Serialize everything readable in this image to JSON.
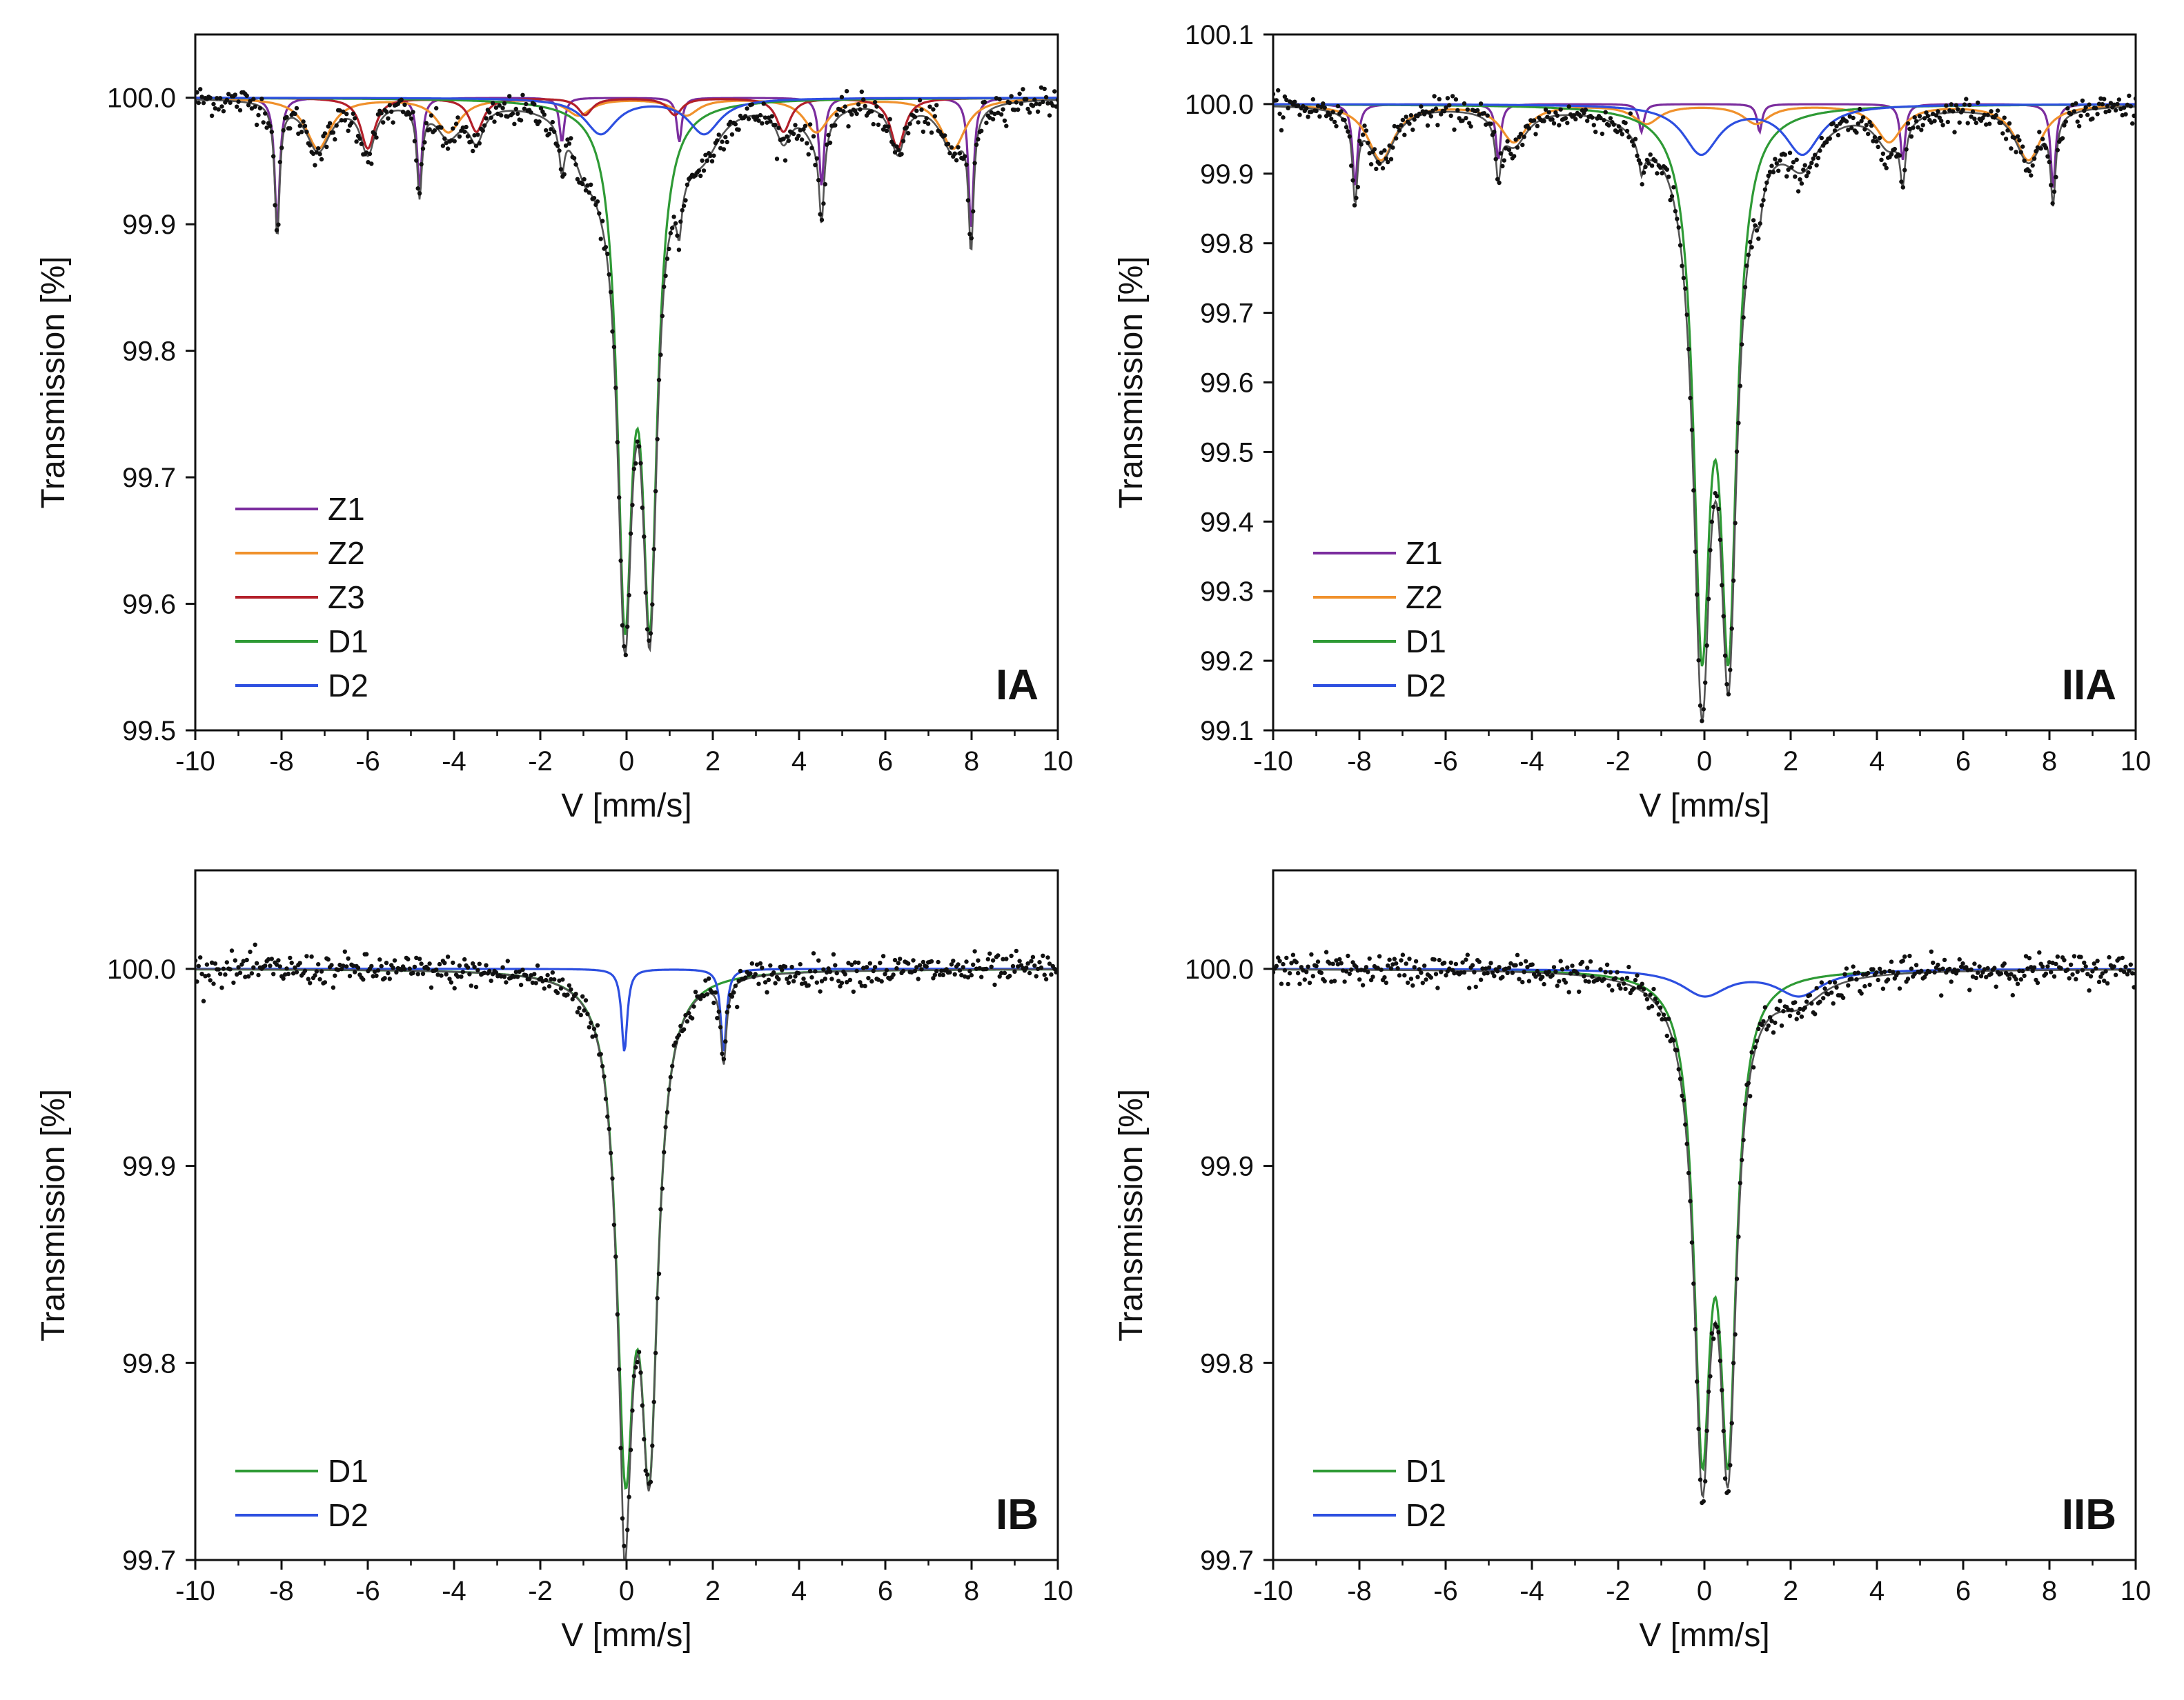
{
  "figure": {
    "description_free": true,
    "panels_count": 4
  },
  "chart_data": [
    {
      "id": "IA",
      "type": "line",
      "panel_label": "IA",
      "xlabel": "V [mm/s]",
      "ylabel": "Transmission [%]",
      "xlim": [
        -10,
        10
      ],
      "ylim": [
        99.5,
        100.05
      ],
      "xticks": [
        -10,
        -8,
        -6,
        -4,
        -2,
        0,
        2,
        4,
        6,
        8,
        10
      ],
      "yticks": [
        99.5,
        99.6,
        99.7,
        99.8,
        99.9,
        100.0
      ],
      "ytick_labels": [
        "99.5",
        "99.6",
        "99.7",
        "99.8",
        "99.9",
        "100.0"
      ],
      "legend_position": "bottom-left",
      "series": [
        {
          "name": "Z1",
          "color": "#7b2d9e",
          "kind": "sextet",
          "center": 0.15,
          "split": 16.5,
          "width": 0.14,
          "depth": 0.105,
          "ratios": [
            3,
            2,
            1,
            1,
            2,
            3
          ]
        },
        {
          "name": "Z2",
          "color": "#f0912c",
          "kind": "sextet",
          "center": 0.4,
          "split": 15.1,
          "width": 0.7,
          "depth": 0.04,
          "ratios": [
            3,
            2,
            1,
            1,
            2,
            3
          ]
        },
        {
          "name": "Z3",
          "color": "#b3202a",
          "kind": "sextet",
          "center": 0.3,
          "split": 12.6,
          "width": 0.4,
          "depth": 0.04,
          "ratios": [
            3,
            2,
            1,
            1,
            2,
            3
          ]
        },
        {
          "name": "D1",
          "color": "#2e9a35",
          "kind": "doublet",
          "center": 0.25,
          "split": 0.58,
          "width": 0.42,
          "depth": 0.38
        },
        {
          "name": "D2",
          "color": "#2d4fe0",
          "kind": "doublet",
          "center": 0.6,
          "split": 2.4,
          "width": 0.9,
          "depth": 0.028
        }
      ],
      "envelope": {
        "name": "fit",
        "color": "#555555"
      },
      "data_points": {
        "color": "#111111",
        "noise": 0.006
      }
    },
    {
      "id": "IIA",
      "type": "line",
      "panel_label": "IIA",
      "xlabel": "V [mm/s]",
      "ylabel": "Transmission [%]",
      "xlim": [
        -10,
        10
      ],
      "ylim": [
        99.1,
        100.1
      ],
      "xticks": [
        -10,
        -8,
        -6,
        -4,
        -2,
        0,
        2,
        4,
        6,
        8,
        10
      ],
      "yticks": [
        99.1,
        99.2,
        99.3,
        99.4,
        99.5,
        99.6,
        99.7,
        99.8,
        99.9,
        100.0,
        100.1
      ],
      "ytick_labels": [
        "99.1",
        "99.2",
        "99.3",
        "99.4",
        "99.5",
        "99.6",
        "99.7",
        "99.8",
        "99.9",
        "100.0",
        "100.1"
      ],
      "legend_position": "bottom-left",
      "series": [
        {
          "name": "Z1",
          "color": "#7b2d9e",
          "kind": "sextet",
          "center": 0.2,
          "split": 16.6,
          "width": 0.14,
          "depth": 0.12,
          "ratios": [
            3,
            2,
            1,
            1,
            2,
            3
          ]
        },
        {
          "name": "Z2",
          "color": "#f0912c",
          "kind": "sextet",
          "center": 0.2,
          "split": 15.4,
          "width": 0.75,
          "depth": 0.08,
          "ratios": [
            3,
            2,
            1,
            1,
            2,
            3
          ]
        },
        {
          "name": "D1",
          "color": "#2e9a35",
          "kind": "doublet",
          "center": 0.25,
          "split": 0.62,
          "width": 0.46,
          "depth": 0.72
        },
        {
          "name": "D2",
          "color": "#2d4fe0",
          "kind": "doublet",
          "center": 1.1,
          "split": 2.35,
          "width": 1.0,
          "depth": 0.07
        }
      ],
      "envelope": {
        "name": "fit",
        "color": "#555555"
      },
      "data_points": {
        "color": "#111111",
        "noise": 0.01
      }
    },
    {
      "id": "IB",
      "type": "line",
      "panel_label": "IB",
      "xlabel": "V [mm/s]",
      "ylabel": "Transmission [%]",
      "xlim": [
        -10,
        10
      ],
      "ylim": [
        99.7,
        100.05
      ],
      "xticks": [
        -10,
        -8,
        -6,
        -4,
        -2,
        0,
        2,
        4,
        6,
        8,
        10
      ],
      "yticks": [
        99.7,
        99.8,
        99.9,
        100.0
      ],
      "ytick_labels": [
        "99.7",
        "99.8",
        "99.9",
        "100.0"
      ],
      "legend_position": "bottom-left",
      "series": [
        {
          "name": "D1",
          "color": "#2e9a35",
          "kind": "doublet",
          "center": 0.25,
          "split": 0.56,
          "width": 0.48,
          "depth": 0.228
        },
        {
          "name": "D2",
          "color": "#2d4fe0",
          "kind": "doublet",
          "center": 1.1,
          "split": 2.3,
          "width": 0.16,
          "depth": 0.042
        }
      ],
      "envelope": {
        "name": "fit",
        "color": "#555555"
      },
      "data_points": {
        "color": "#111111",
        "noise": 0.004
      }
    },
    {
      "id": "IIB",
      "type": "line",
      "panel_label": "IIB",
      "xlabel": "V [mm/s]",
      "ylabel": "Transmission [%]",
      "xlim": [
        -10,
        10
      ],
      "ylim": [
        99.7,
        100.05
      ],
      "xticks": [
        -10,
        -8,
        -6,
        -4,
        -2,
        0,
        2,
        4,
        6,
        8,
        10
      ],
      "yticks": [
        99.7,
        99.8,
        99.9,
        100.0
      ],
      "ytick_labels": [
        "99.7",
        "99.8",
        "99.9",
        "100.0"
      ],
      "legend_position": "bottom-left",
      "series": [
        {
          "name": "D1",
          "color": "#2e9a35",
          "kind": "doublet",
          "center": 0.25,
          "split": 0.6,
          "width": 0.46,
          "depth": 0.225
        },
        {
          "name": "D2",
          "color": "#2d4fe0",
          "kind": "doublet",
          "center": 1.1,
          "split": 2.2,
          "width": 1.3,
          "depth": 0.013
        }
      ],
      "envelope": {
        "name": "fit",
        "color": "#555555"
      },
      "data_points": {
        "color": "#111111",
        "noise": 0.004
      }
    }
  ]
}
